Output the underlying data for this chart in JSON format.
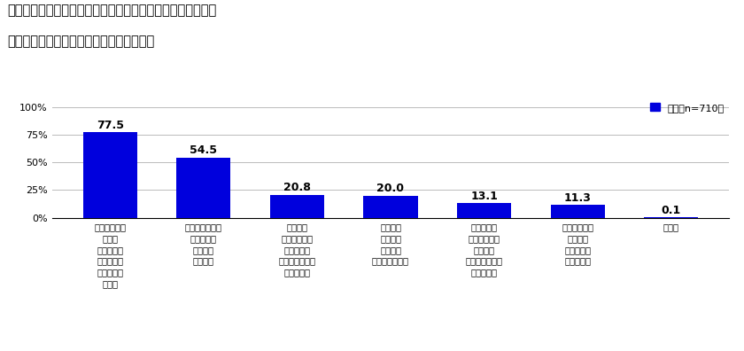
{
  "title_line1": "今後、診療明細書が必要だと考える理由　［複数回答形式］",
  "title_line2": "対象：今後、診療明細書が必要だと思う人",
  "categories": [
    "受けた医療の\n内容を\n知ることが\nできるのは\n当然の権利\nだから",
    "医療費の明細を\n知るための\n情報源に\nなるから",
    "セカンド\nオピニオンを\n受ける際の\n説明材料として\n便利だから",
    "診療時に\n医師等と\n話す際の\n資料になるから",
    "医薬品等の\n副作用情報が\n出た際の\n投薬証明として\n重要だから",
    "生命保険等の\n簡易請求\nなどの際に\n便利だから",
    "その他"
  ],
  "values": [
    77.5,
    54.5,
    20.8,
    20.0,
    13.1,
    11.3,
    0.1
  ],
  "bar_color": "#0000dd",
  "background_color": "#ffffff",
  "yticks": [
    0,
    25,
    50,
    75,
    100
  ],
  "ytick_labels": [
    "0%",
    "25%",
    "50%",
    "75%",
    "100%"
  ],
  "ylim": [
    0,
    108
  ],
  "legend_label": "全体［n=710］",
  "legend_color": "#0000dd",
  "title_fontsize": 10.5,
  "label_fontsize": 8,
  "value_fontsize": 9,
  "xtick_fontsize": 7.2,
  "grid_color": "#bbbbbb"
}
